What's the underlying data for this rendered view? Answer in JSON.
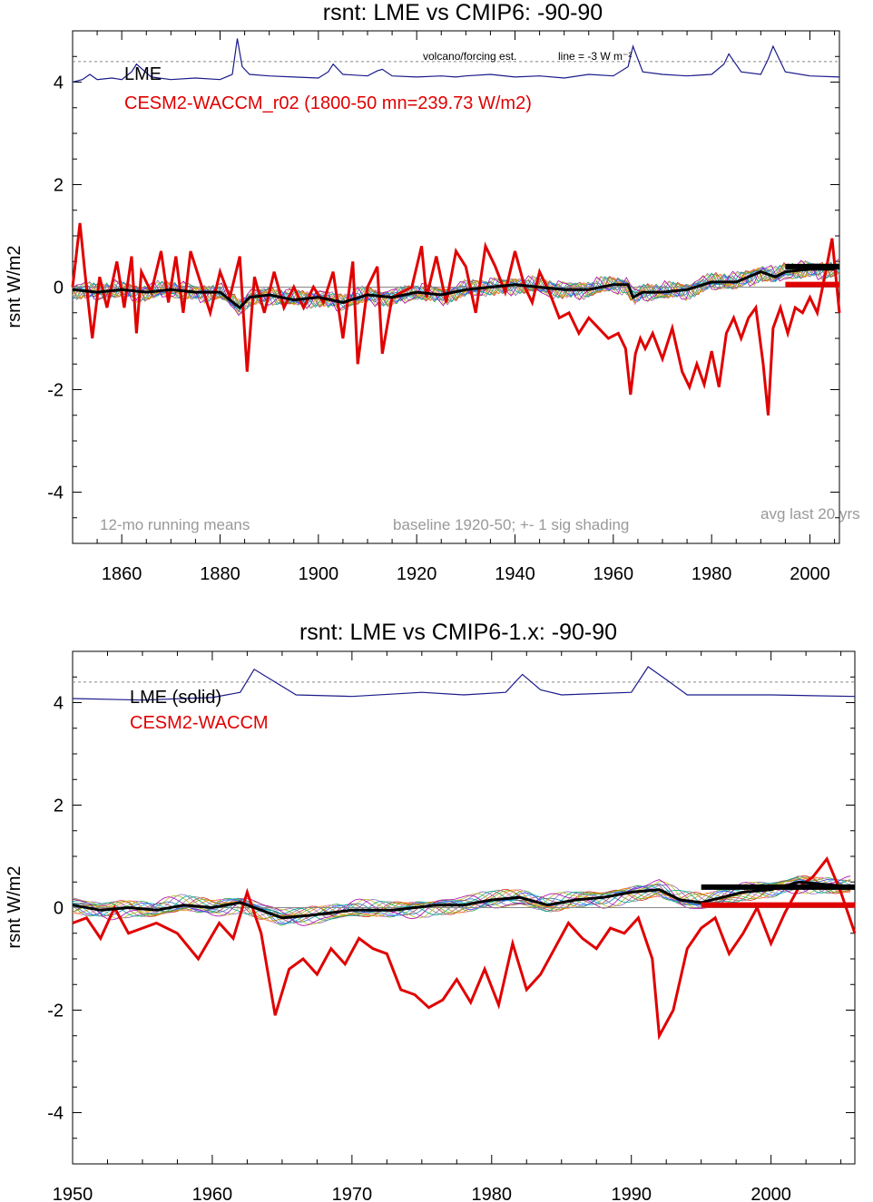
{
  "chart_data": [
    {
      "type": "line",
      "title": "rsnt: LME vs CMIP6: -90-90",
      "ylabel": "rsnt W/m2",
      "xlabel": "",
      "xlim": [
        1850,
        2006
      ],
      "ylim": [
        -5,
        5
      ],
      "xticks": [
        1860,
        1880,
        1900,
        1920,
        1940,
        1960,
        1980,
        2000
      ],
      "xtick_labels": [
        "1860",
        "1880",
        "1900",
        "1920",
        "1940",
        "1960",
        "1980",
        "2000"
      ],
      "yticks": [
        4,
        2,
        0,
        -2,
        -4
      ],
      "ytick_labels": [
        "4",
        "2",
        "0",
        "-2",
        "-4"
      ],
      "legend": [
        {
          "label": "LME",
          "color": "#000000"
        },
        {
          "label": "CESM2-WACCM_r02 (1800-50 mn=239.73 W/m2)",
          "color": "#e00000"
        }
      ],
      "annotations": {
        "volcano": "volcano/forcing est.",
        "line": "line = -3 W m⁻²",
        "running": "12-mo running means",
        "baseline": "baseline 1920-50; +- 1 sig shading",
        "avg": "avg last 20 yrs"
      },
      "volcano_reference_level": 4.4,
      "volcano_series": {
        "x": [
          1850,
          1852,
          1853.5,
          1855,
          1858,
          1860,
          1862,
          1863,
          1866,
          1870,
          1875,
          1880,
          1882.5,
          1883.5,
          1884.5,
          1886,
          1890,
          1895,
          1900,
          1902,
          1903,
          1905,
          1910,
          1912,
          1913,
          1915,
          1920,
          1925,
          1928,
          1930,
          1935,
          1940,
          1945,
          1950,
          1955,
          1960,
          1963,
          1964,
          1966,
          1970,
          1975,
          1980,
          1982.5,
          1983.5,
          1986,
          1990,
          1991.5,
          1992.5,
          1995,
          2000,
          2006
        ],
        "y": [
          4.0,
          4.05,
          4.15,
          4.05,
          4.08,
          4.05,
          4.2,
          4.35,
          4.1,
          4.05,
          4.08,
          4.05,
          4.15,
          4.85,
          4.3,
          4.15,
          4.12,
          4.1,
          4.08,
          4.2,
          4.35,
          4.15,
          4.12,
          4.22,
          4.25,
          4.12,
          4.1,
          4.12,
          4.1,
          4.12,
          4.15,
          4.1,
          4.12,
          4.08,
          4.15,
          4.12,
          4.3,
          4.7,
          4.2,
          4.15,
          4.12,
          4.15,
          4.35,
          4.55,
          4.2,
          4.15,
          4.45,
          4.7,
          4.2,
          4.12,
          4.1
        ]
      },
      "series": [
        {
          "name": "LME",
          "x": [
            1850,
            1855,
            1860,
            1865,
            1870,
            1875,
            1880,
            1884,
            1886,
            1890,
            1895,
            1900,
            1905,
            1910,
            1915,
            1920,
            1925,
            1930,
            1935,
            1940,
            1945,
            1950,
            1955,
            1960,
            1963,
            1964,
            1966,
            1970,
            1975,
            1980,
            1985,
            1990,
            1993,
            1995,
            2000,
            2005
          ],
          "y": [
            -0.05,
            -0.1,
            -0.05,
            -0.1,
            -0.05,
            -0.1,
            -0.1,
            -0.4,
            -0.2,
            -0.15,
            -0.25,
            -0.2,
            -0.3,
            -0.15,
            -0.2,
            -0.1,
            -0.15,
            -0.05,
            0.0,
            0.05,
            0.0,
            -0.05,
            -0.05,
            0.05,
            0.05,
            -0.2,
            -0.1,
            -0.1,
            -0.05,
            0.1,
            0.1,
            0.3,
            0.2,
            0.3,
            0.35,
            0.35
          ]
        },
        {
          "name": "CESM2-WACCM_r02",
          "x": [
            1850,
            1851.5,
            1852.5,
            1854,
            1855.5,
            1857,
            1859,
            1860.5,
            1862,
            1863,
            1864,
            1866,
            1868,
            1869.5,
            1871,
            1872.5,
            1874,
            1876,
            1878,
            1880,
            1882,
            1884,
            1885.5,
            1887,
            1889,
            1891,
            1893,
            1895,
            1897,
            1899,
            1901,
            1903,
            1905,
            1907,
            1908,
            1910,
            1912,
            1913,
            1915,
            1917,
            1919,
            1921,
            1922,
            1924,
            1926,
            1928,
            1930,
            1932,
            1934,
            1936,
            1938,
            1940,
            1942,
            1943.5,
            1945,
            1947,
            1949,
            1951,
            1953,
            1955,
            1957,
            1959,
            1961,
            1962.5,
            1963.5,
            1964.5,
            1965.5,
            1966.5,
            1968,
            1970,
            1972,
            1974,
            1975.5,
            1977,
            1978.5,
            1980,
            1981.5,
            1983,
            1984.5,
            1986,
            1987.5,
            1989,
            1990.5,
            1991.5,
            1992.5,
            1994,
            1995.5,
            1997,
            1998.5,
            2000,
            2001.5,
            2003,
            2004.5,
            2006
          ],
          "y": [
            0.0,
            1.25,
            0.3,
            -1.0,
            0.2,
            -0.4,
            0.5,
            -0.4,
            0.6,
            -0.9,
            0.3,
            -0.1,
            0.7,
            -0.3,
            0.6,
            -0.5,
            0.7,
            0.1,
            -0.5,
            0.3,
            -0.2,
            0.6,
            -1.65,
            0.2,
            -0.5,
            0.3,
            -0.4,
            0.0,
            -0.4,
            0.0,
            -0.3,
            0.3,
            -1.0,
            0.5,
            -1.5,
            0.0,
            0.4,
            -1.3,
            -0.2,
            -0.1,
            0.0,
            0.8,
            -0.2,
            0.6,
            -0.3,
            0.7,
            0.4,
            -0.5,
            0.8,
            0.4,
            -0.1,
            0.7,
            0.0,
            -0.3,
            0.3,
            -0.1,
            -0.6,
            -0.5,
            -0.9,
            -0.6,
            -0.8,
            -1.0,
            -0.9,
            -1.2,
            -2.1,
            -1.3,
            -1.0,
            -1.2,
            -0.9,
            -1.4,
            -0.8,
            -1.65,
            -1.95,
            -1.5,
            -1.9,
            -1.25,
            -1.95,
            -0.9,
            -0.6,
            -1.0,
            -0.6,
            -0.4,
            -1.5,
            -2.5,
            -0.8,
            -0.4,
            -0.9,
            -0.4,
            -0.5,
            -0.2,
            -0.5,
            0.2,
            0.95,
            -0.5
          ]
        }
      ],
      "avg_last_20yrs": {
        "LME": 0.4,
        "CESM2-WACCM_r02": 0.05,
        "x_range": [
          1995,
          2006
        ]
      }
    },
    {
      "type": "line",
      "title": "rsnt: LME vs CMIP6-1.x: -90-90",
      "ylabel": "rsnt W/m2",
      "xlabel": "",
      "xlim": [
        1950,
        2006
      ],
      "ylim": [
        -5,
        5
      ],
      "xticks": [
        1950,
        1960,
        1970,
        1980,
        1990,
        2000
      ],
      "xtick_labels": [
        "1950",
        "1960",
        "1970",
        "1980",
        "1990",
        "2000"
      ],
      "yticks": [
        4,
        2,
        0,
        -2,
        -4
      ],
      "ytick_labels": [
        "4",
        "2",
        "0",
        "-2",
        "-4"
      ],
      "legend": [
        {
          "label": "LME (solid)",
          "color": "#000000"
        },
        {
          "label": "CESM2-WACCM",
          "color": "#e00000"
        }
      ],
      "volcano_reference_level": 4.4,
      "volcano_series": {
        "x": [
          1950,
          1955,
          1960,
          1962,
          1963,
          1964.5,
          1966,
          1970,
          1975,
          1978,
          1981,
          1982.2,
          1983.5,
          1985,
          1990,
          1991.2,
          1992.5,
          1994,
          2000,
          2006
        ],
        "y": [
          4.08,
          4.05,
          4.1,
          4.2,
          4.65,
          4.4,
          4.15,
          4.12,
          4.2,
          4.15,
          4.2,
          4.55,
          4.25,
          4.15,
          4.2,
          4.7,
          4.45,
          4.15,
          4.15,
          4.12
        ]
      },
      "series": [
        {
          "name": "LME",
          "x": [
            1950,
            1952,
            1954,
            1956,
            1958,
            1960,
            1962,
            1963.5,
            1965,
            1967,
            1970,
            1973,
            1976,
            1978,
            1980,
            1982,
            1984,
            1986,
            1988,
            1990,
            1992,
            1993.5,
            1995,
            1998,
            2000,
            2002,
            2004,
            2006
          ],
          "y": [
            0.05,
            -0.05,
            0.0,
            -0.05,
            0.05,
            0.0,
            0.1,
            -0.05,
            -0.2,
            -0.15,
            -0.05,
            -0.05,
            0.05,
            0.05,
            0.15,
            0.2,
            0.05,
            0.15,
            0.2,
            0.3,
            0.35,
            0.15,
            0.1,
            0.3,
            0.35,
            0.5,
            0.45,
            0.4
          ]
        },
        {
          "name": "CESM2-WACCM",
          "x": [
            1950,
            1951,
            1952,
            1953,
            1954,
            1955,
            1956,
            1957.5,
            1959,
            1960.5,
            1961.5,
            1962.5,
            1963.5,
            1964.5,
            1965.5,
            1966.5,
            1967.5,
            1968.5,
            1969.5,
            1970.5,
            1971.5,
            1972.5,
            1973.5,
            1974.5,
            1975.5,
            1976.5,
            1977.5,
            1978.5,
            1979.5,
            1980.5,
            1981.5,
            1982.5,
            1983.5,
            1984.5,
            1985.5,
            1986.5,
            1987.5,
            1988.5,
            1989.5,
            1990.5,
            1991.5,
            1992,
            1993,
            1994,
            1995,
            1996,
            1997,
            1998,
            1999,
            2000,
            2001,
            2002,
            2003,
            2004,
            2005,
            2006
          ],
          "y": [
            -0.3,
            -0.2,
            -0.6,
            0.0,
            -0.5,
            -0.4,
            -0.3,
            -0.5,
            -1.0,
            -0.3,
            -0.6,
            0.3,
            -0.5,
            -2.1,
            -1.2,
            -1.0,
            -1.3,
            -0.8,
            -1.1,
            -0.6,
            -0.8,
            -0.9,
            -1.6,
            -1.7,
            -1.95,
            -1.8,
            -1.4,
            -1.85,
            -1.2,
            -1.9,
            -0.7,
            -1.6,
            -1.3,
            -0.8,
            -0.3,
            -0.6,
            -0.8,
            -0.4,
            -0.5,
            -0.2,
            -1.0,
            -2.5,
            -2.0,
            -0.8,
            -0.4,
            -0.2,
            -0.9,
            -0.5,
            0.0,
            -0.7,
            -0.1,
            0.4,
            0.6,
            0.95,
            0.3,
            -0.5
          ]
        }
      ],
      "avg_last_20yrs": {
        "LME": 0.4,
        "CESM2-WACCM": 0.05,
        "x_range": [
          1995,
          2006
        ]
      }
    }
  ]
}
